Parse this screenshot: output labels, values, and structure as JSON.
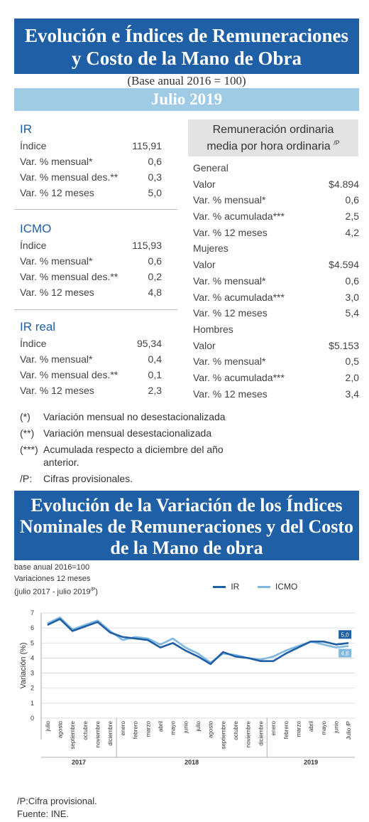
{
  "header": {
    "title_line1": "Evolución e Índices de Remuneraciones",
    "title_line2": "y Costo de la Mano de Obra",
    "base": "(Base anual 2016 = 100)",
    "month": "Julio 2019"
  },
  "ir": {
    "title": "IR",
    "rows": [
      {
        "label": "Índice",
        "value": "115,91"
      },
      {
        "label": "Var. % mensual*",
        "value": "0,6"
      },
      {
        "label": "Var. % mensual des.**",
        "value": "0,3"
      },
      {
        "label": "Var. % 12 meses",
        "value": "5,0"
      }
    ]
  },
  "icmo": {
    "title": "ICMO",
    "rows": [
      {
        "label": "Índice",
        "value": "115,93"
      },
      {
        "label": "Var. % mensual*",
        "value": "0,6"
      },
      {
        "label": "Var. % mensual des.**",
        "value": "0,2"
      },
      {
        "label": "Var. % 12 meses",
        "value": "4,8"
      }
    ]
  },
  "ir_real": {
    "title": "IR real",
    "rows": [
      {
        "label": "Índice",
        "value": "95,34"
      },
      {
        "label": "Var. % mensual*",
        "value": "0,4"
      },
      {
        "label": "Var. % mensual des.**",
        "value": "0,1"
      },
      {
        "label": "Var. % 12 meses",
        "value": "2,3"
      }
    ]
  },
  "remuneracion": {
    "title_line1": "Remuneración ordinaria",
    "title_line2": "media por hora ordinaria",
    "title_sup": "/P",
    "groups": [
      {
        "name": "General",
        "rows": [
          {
            "label": "Valor",
            "value": "$4.894"
          },
          {
            "label": "Var. % mensual*",
            "value": "0,6"
          },
          {
            "label": "Var. % acumulada***",
            "value": "2,5"
          },
          {
            "label": "Var. % 12 meses",
            "value": "4,2"
          }
        ]
      },
      {
        "name": "Mujeres",
        "rows": [
          {
            "label": "Valor",
            "value": "$4.594"
          },
          {
            "label": "Var. % mensual*",
            "value": "0,6"
          },
          {
            "label": "Var. % acumulada***",
            "value": "3,0"
          },
          {
            "label": "Var. % 12 meses",
            "value": "5,4"
          }
        ]
      },
      {
        "name": "Hombres",
        "rows": [
          {
            "label": "Valor",
            "value": "$5.153"
          },
          {
            "label": "Var. % mensual*",
            "value": "0,5"
          },
          {
            "label": "Var. % acumulada***",
            "value": "2,0"
          },
          {
            "label": "Var. % 12 meses",
            "value": "3,4"
          }
        ]
      }
    ]
  },
  "notes": [
    {
      "key": "(*)",
      "text": "Variación mensual no desestacionalizada"
    },
    {
      "key": "(**)",
      "text": "Variación mensual desestacionalizada"
    },
    {
      "key": "(***)",
      "text": "Acumulada respecto a diciembre del año anterior."
    },
    {
      "key": "/P:",
      "text": "Cifras provisionales."
    }
  ],
  "chart_section": {
    "title_line1": "Evolución de la Variación de los Índices",
    "title_line2": "Nominales de Remuneraciones y del Costo",
    "title_line3": "de la Mano de obra",
    "meta_line1": "base anual 2016=100",
    "meta_line2": "Variaciones 12 meses",
    "meta_line3": "(julio 2017 - julio 2019",
    "meta_line3_sup": "/P",
    "meta_line3_end": ")"
  },
  "chart_data": {
    "type": "line",
    "ylabel": "Variación (%)",
    "ylim": [
      0,
      7
    ],
    "yticks": [
      "0",
      "1",
      "2",
      "3",
      "4",
      "5",
      "6",
      "7"
    ],
    "grid": true,
    "legend_position": "top-right",
    "categories": [
      "julio",
      "agosto",
      "septiembre",
      "octubre",
      "noviembre",
      "diciembre",
      "enero",
      "febrero",
      "marzo",
      "abril",
      "mayo",
      "junio",
      "julio",
      "agosto",
      "septiembre",
      "octubre",
      "noviembre",
      "diciembre",
      "enero",
      "febrero",
      "marzo",
      "abril",
      "mayo",
      "junio",
      "Julio /P"
    ],
    "years": [
      {
        "label": "2017",
        "from": 0,
        "to": 5
      },
      {
        "label": "2018",
        "from": 6,
        "to": 17
      },
      {
        "label": "2019",
        "from": 18,
        "to": 24
      }
    ],
    "series": [
      {
        "name": "IR",
        "color": "#1f5fa6",
        "values": [
          6.2,
          6.6,
          5.8,
          6.1,
          6.4,
          5.7,
          5.4,
          5.3,
          5.2,
          4.7,
          5.0,
          4.5,
          4.1,
          3.6,
          4.4,
          4.1,
          4.0,
          3.8,
          3.8,
          4.3,
          4.7,
          5.1,
          5.1,
          4.9,
          5.0
        ],
        "end_label": "5,0"
      },
      {
        "name": "ICMO",
        "color": "#7fb8e0",
        "values": [
          6.3,
          6.7,
          5.9,
          6.2,
          6.5,
          5.8,
          5.2,
          5.4,
          5.3,
          4.9,
          5.3,
          4.7,
          4.3,
          3.7,
          4.3,
          4.2,
          4.0,
          3.9,
          4.1,
          4.5,
          4.8,
          5.1,
          4.9,
          4.7,
          4.8
        ],
        "end_label": "4,8"
      }
    ]
  },
  "footer": {
    "note": "/P:Cifra provisional.",
    "source": "Fuente: INE."
  }
}
